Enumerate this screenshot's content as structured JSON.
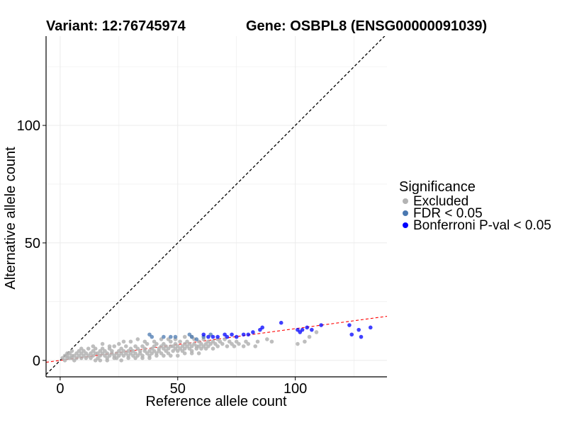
{
  "chart_data": {
    "type": "scatter",
    "title_left": "Variant: 12:76745974",
    "title_right": "Gene: OSBPL8 (ENSG00000091039)",
    "xlabel": "Reference allele count",
    "ylabel": "Alternative allele count",
    "xlim": [
      -6,
      139
    ],
    "ylim": [
      -7,
      138
    ],
    "x_ticks": [
      0,
      50,
      100
    ],
    "y_ticks": [
      0,
      50,
      100
    ],
    "grid": true,
    "reference_line": {
      "label": "y = x",
      "slope": 1,
      "intercept": 0,
      "color": "#000000",
      "style": "dashed"
    },
    "fit_line": {
      "slope": 0.135,
      "intercept": 0.0,
      "color": "#ff0000",
      "style": "dashed"
    },
    "legend": {
      "title": "Significance",
      "position": "right",
      "entries": [
        {
          "label": "Excluded",
          "color": "#b3b3b3"
        },
        {
          "label": "FDR < 0.05",
          "color": "#4a78b0"
        },
        {
          "label": "Bonferroni P-val < 0.05",
          "color": "#0000ff"
        }
      ]
    },
    "series": [
      {
        "name": "Excluded",
        "color": "#b3b3b3",
        "points": [
          [
            1,
            1
          ],
          [
            2,
            0
          ],
          [
            2,
            2
          ],
          [
            3,
            1
          ],
          [
            3,
            2
          ],
          [
            4,
            1
          ],
          [
            4,
            3
          ],
          [
            5,
            2
          ],
          [
            5,
            1
          ],
          [
            6,
            2
          ],
          [
            6,
            0
          ],
          [
            7,
            1
          ],
          [
            7,
            3
          ],
          [
            8,
            2
          ],
          [
            8,
            4
          ],
          [
            9,
            1
          ],
          [
            9,
            3
          ],
          [
            10,
            2
          ],
          [
            10,
            4
          ],
          [
            11,
            1
          ],
          [
            11,
            3
          ],
          [
            12,
            2
          ],
          [
            12,
            5
          ],
          [
            13,
            3
          ],
          [
            13,
            1
          ],
          [
            14,
            2
          ],
          [
            14,
            4
          ],
          [
            15,
            3
          ],
          [
            15,
            5
          ],
          [
            16,
            1
          ],
          [
            16,
            3
          ],
          [
            17,
            2
          ],
          [
            17,
            4
          ],
          [
            18,
            3
          ],
          [
            18,
            5
          ],
          [
            19,
            2
          ],
          [
            19,
            4
          ],
          [
            20,
            3
          ],
          [
            20,
            1
          ],
          [
            21,
            2
          ],
          [
            21,
            5
          ],
          [
            22,
            3
          ],
          [
            22,
            4
          ],
          [
            23,
            2
          ],
          [
            23,
            6
          ],
          [
            24,
            3
          ],
          [
            24,
            1
          ],
          [
            25,
            4
          ],
          [
            25,
            2
          ],
          [
            26,
            3
          ],
          [
            26,
            5
          ],
          [
            27,
            2
          ],
          [
            27,
            4
          ],
          [
            28,
            3
          ],
          [
            28,
            6
          ],
          [
            29,
            2
          ],
          [
            29,
            4
          ],
          [
            30,
            3
          ],
          [
            30,
            5
          ],
          [
            31,
            2
          ],
          [
            31,
            4
          ],
          [
            32,
            6
          ],
          [
            32,
            3
          ],
          [
            33,
            2
          ],
          [
            33,
            5
          ],
          [
            34,
            4
          ],
          [
            34,
            3
          ],
          [
            35,
            6
          ],
          [
            35,
            2
          ],
          [
            36,
            4
          ],
          [
            36,
            5
          ],
          [
            37,
            3
          ],
          [
            37,
            7
          ],
          [
            38,
            4
          ],
          [
            38,
            2
          ],
          [
            39,
            5
          ],
          [
            39,
            3
          ],
          [
            40,
            4
          ],
          [
            40,
            6
          ],
          [
            41,
            3
          ],
          [
            41,
            7
          ],
          [
            42,
            5
          ],
          [
            42,
            4
          ],
          [
            43,
            3
          ],
          [
            43,
            6
          ],
          [
            44,
            5
          ],
          [
            44,
            7
          ],
          [
            45,
            4
          ],
          [
            45,
            6
          ],
          [
            46,
            5
          ],
          [
            46,
            3
          ],
          [
            47,
            6
          ],
          [
            47,
            8
          ],
          [
            48,
            4
          ],
          [
            48,
            6
          ],
          [
            49,
            5
          ],
          [
            49,
            7
          ],
          [
            50,
            6
          ],
          [
            50,
            4
          ],
          [
            51,
            5
          ],
          [
            51,
            8
          ],
          [
            52,
            6
          ],
          [
            52,
            4
          ],
          [
            53,
            7
          ],
          [
            53,
            5
          ],
          [
            54,
            6
          ],
          [
            54,
            8
          ],
          [
            55,
            5
          ],
          [
            55,
            7
          ],
          [
            56,
            6
          ],
          [
            56,
            4
          ],
          [
            57,
            7
          ],
          [
            57,
            9
          ],
          [
            58,
            6
          ],
          [
            58,
            5
          ],
          [
            59,
            8
          ],
          [
            59,
            6
          ],
          [
            60,
            7
          ],
          [
            60,
            5
          ],
          [
            61,
            6
          ],
          [
            61,
            9
          ],
          [
            62,
            7
          ],
          [
            62,
            5
          ],
          [
            63,
            8
          ],
          [
            63,
            6
          ],
          [
            64,
            7
          ],
          [
            65,
            8
          ],
          [
            65,
            5
          ],
          [
            66,
            7
          ],
          [
            67,
            9
          ],
          [
            67,
            6
          ],
          [
            68,
            8
          ],
          [
            69,
            7
          ],
          [
            70,
            9
          ],
          [
            71,
            6
          ],
          [
            72,
            8
          ],
          [
            73,
            7
          ],
          [
            74,
            6
          ],
          [
            75,
            8
          ],
          [
            76,
            7
          ],
          [
            78,
            6
          ],
          [
            79,
            8
          ],
          [
            80,
            7
          ],
          [
            83,
            6
          ],
          [
            84,
            8
          ],
          [
            88,
            9
          ],
          [
            90,
            8
          ],
          [
            101,
            7
          ],
          [
            104,
            8
          ],
          [
            106,
            10
          ],
          [
            109,
            12
          ],
          [
            3,
            3
          ],
          [
            5,
            4
          ],
          [
            9,
            5
          ],
          [
            14,
            6
          ],
          [
            18,
            7
          ],
          [
            21,
            6
          ],
          [
            25,
            7
          ],
          [
            27,
            8
          ],
          [
            30,
            8
          ],
          [
            33,
            9
          ],
          [
            36,
            8
          ],
          [
            40,
            8
          ],
          [
            43,
            9
          ],
          [
            46,
            9
          ],
          [
            49,
            9
          ],
          [
            53,
            10
          ],
          [
            56,
            10
          ],
          [
            15,
            0
          ],
          [
            17,
            0
          ],
          [
            20,
            0
          ],
          [
            23,
            1
          ],
          [
            26,
            0
          ],
          [
            29,
            1
          ],
          [
            32,
            1
          ],
          [
            35,
            1
          ],
          [
            38,
            1
          ],
          [
            41,
            2
          ],
          [
            44,
            2
          ],
          [
            47,
            2
          ],
          [
            50,
            2
          ],
          [
            53,
            3
          ],
          [
            56,
            3
          ],
          [
            59,
            3
          ]
        ]
      },
      {
        "name": "FDR < 0.05",
        "color": "#4a78b0",
        "points": [
          [
            38,
            11
          ],
          [
            39,
            10
          ],
          [
            44,
            10
          ],
          [
            47,
            10
          ],
          [
            49,
            10
          ],
          [
            55,
            11
          ],
          [
            56,
            10
          ],
          [
            58,
            9
          ],
          [
            61,
            10
          ],
          [
            64,
            11
          ]
        ]
      },
      {
        "name": "Bonferroni P-val < 0.05",
        "color": "#0000ff",
        "points": [
          [
            61,
            11
          ],
          [
            63,
            10
          ],
          [
            65,
            10
          ],
          [
            67,
            10
          ],
          [
            70,
            11
          ],
          [
            71,
            10
          ],
          [
            73,
            11
          ],
          [
            75,
            10
          ],
          [
            78,
            11
          ],
          [
            80,
            11
          ],
          [
            82,
            12
          ],
          [
            85,
            13
          ],
          [
            86,
            14
          ],
          [
            94,
            16
          ],
          [
            101,
            13
          ],
          [
            102,
            12
          ],
          [
            103,
            13
          ],
          [
            105,
            14
          ],
          [
            107,
            13
          ],
          [
            111,
            15
          ],
          [
            123,
            15
          ],
          [
            124,
            11
          ],
          [
            127,
            13
          ],
          [
            128,
            10
          ],
          [
            132,
            14
          ]
        ]
      }
    ]
  }
}
